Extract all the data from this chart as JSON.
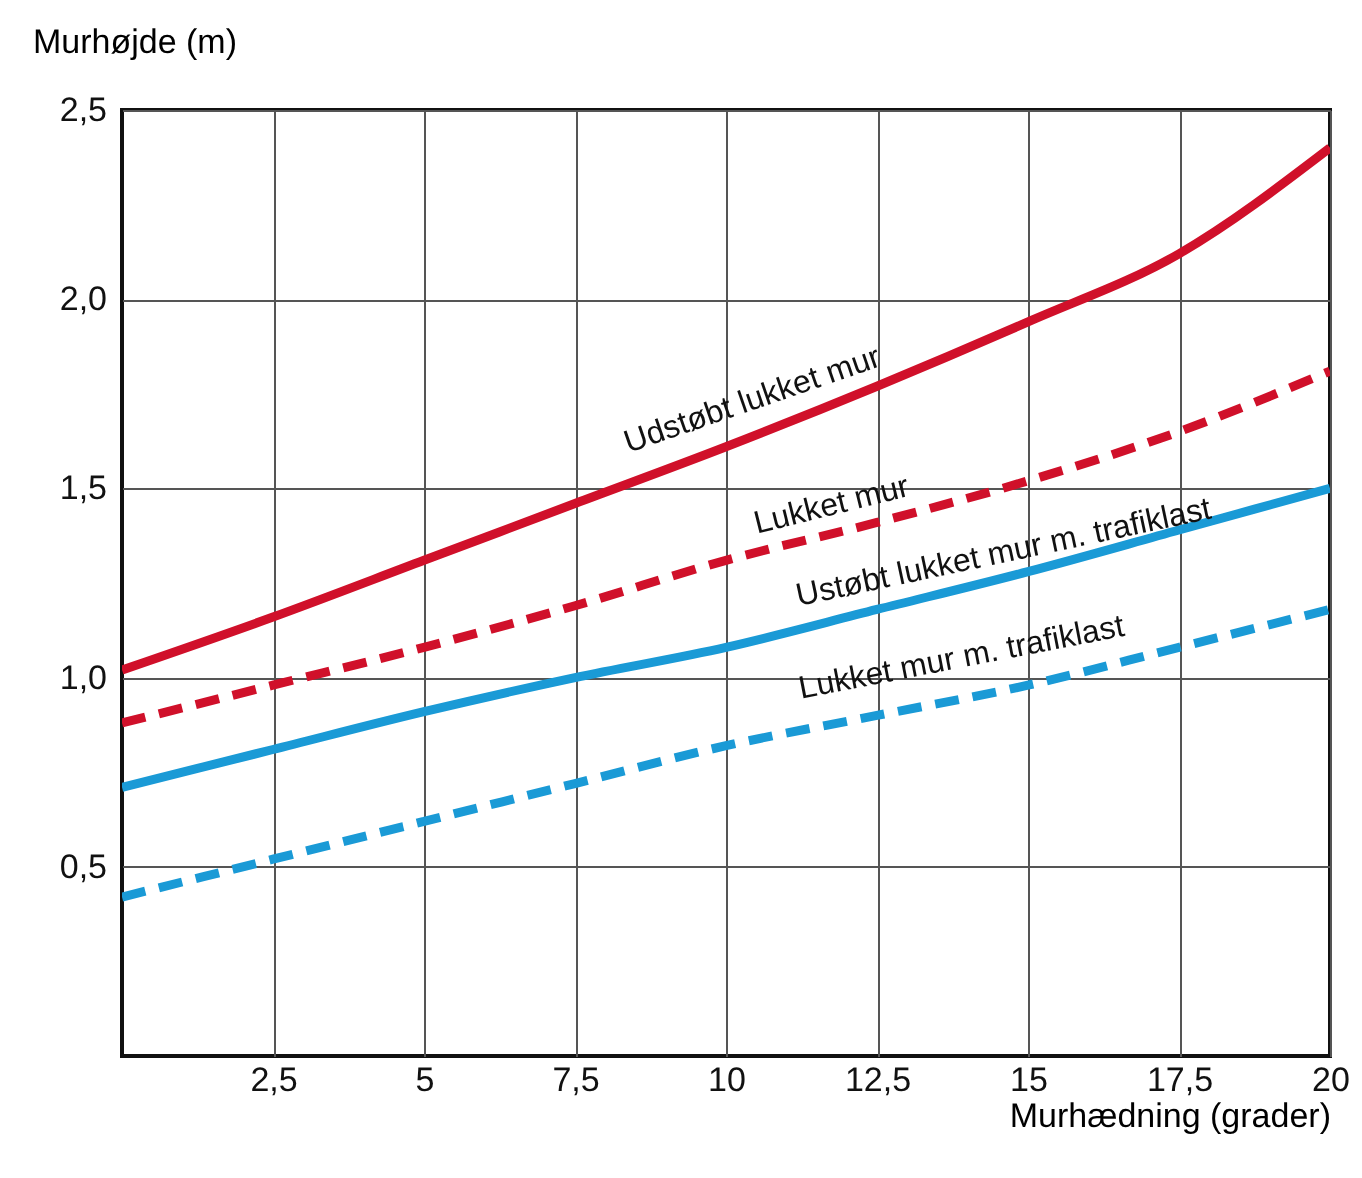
{
  "chart_data": {
    "type": "line",
    "xlabel": "Murhædning (grader)",
    "ylabel": "Murhøjde (m)",
    "x": [
      0,
      2.5,
      5,
      7.5,
      10,
      12.5,
      15,
      17.5,
      20
    ],
    "series": [
      {
        "name": "Udstøbt lukket mur",
        "color": "#d0102a",
        "line_style": "solid",
        "values": [
          1.02,
          1.16,
          1.31,
          1.46,
          1.61,
          1.77,
          1.94,
          2.12,
          2.4
        ]
      },
      {
        "name": "Lukket mur",
        "color": "#d0102a",
        "line_style": "dashed",
        "values": [
          0.88,
          0.98,
          1.08,
          1.19,
          1.31,
          1.41,
          1.52,
          1.65,
          1.81
        ]
      },
      {
        "name": "Ustøbt lukket mur m. trafiklast",
        "color": "#1a9ad6",
        "line_style": "solid",
        "values": [
          0.71,
          0.81,
          0.91,
          1.0,
          1.08,
          1.18,
          1.28,
          1.39,
          1.5
        ]
      },
      {
        "name": "Lukket mur m. trafiklast",
        "color": "#1a9ad6",
        "line_style": "dashed",
        "values": [
          0.42,
          0.52,
          0.62,
          0.72,
          0.82,
          0.9,
          0.98,
          1.08,
          1.18
        ]
      }
    ],
    "xlim": [
      0,
      20
    ],
    "xticks": [
      {
        "value": 2.5,
        "label": "2,5"
      },
      5,
      {
        "value": 7.5,
        "label": "7,5"
      },
      10,
      {
        "value": 12.5,
        "label": "12,5"
      },
      15,
      {
        "value": 17.5,
        "label": "17,5"
      },
      20
    ],
    "ylim": [
      0,
      2.5
    ],
    "yticks": [
      {
        "value": 0.5,
        "label": "0,5"
      },
      {
        "value": 1,
        "label": "1,0"
      },
      {
        "value": 1.5,
        "label": "1,5"
      },
      {
        "value": 2,
        "label": "2,0"
      },
      {
        "value": 2.5,
        "label": "2,5"
      }
    ],
    "grid": true
  }
}
